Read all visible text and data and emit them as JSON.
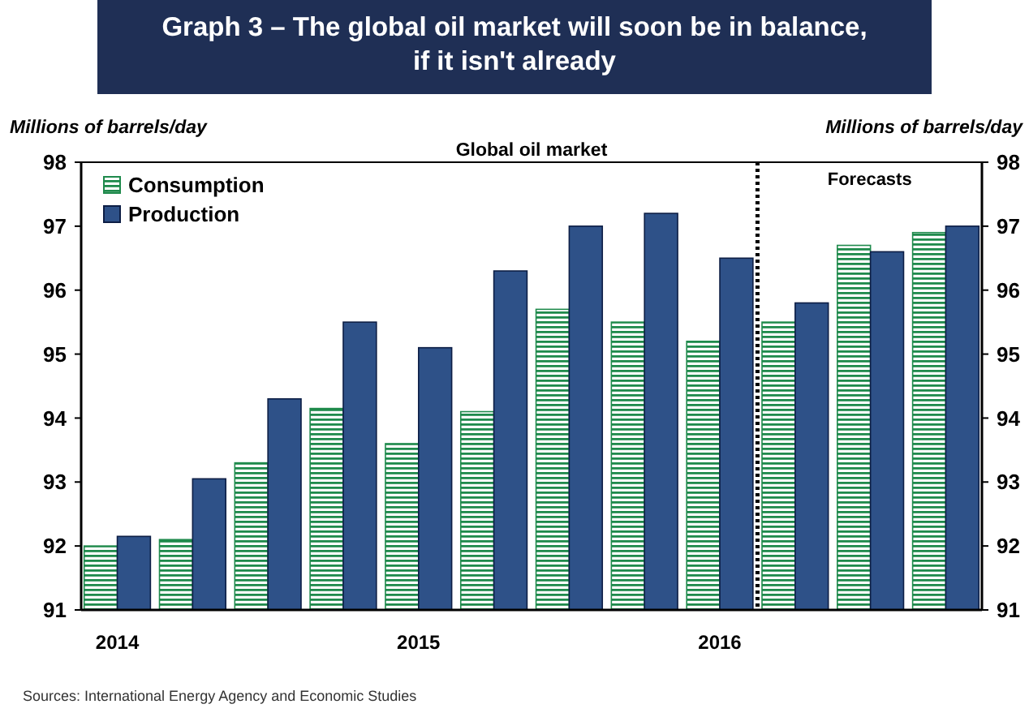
{
  "chart_data": {
    "type": "bar",
    "title": "Graph 3 – The global oil market will soon be in balance, if it isn't already",
    "subtitle": "Global oil market",
    "ylabel": "Millions of barrels/day",
    "y2label": "Millions of barrels/day",
    "categories": [
      "2014",
      null,
      null,
      null,
      "2015",
      null,
      null,
      null,
      "2016",
      null,
      null,
      null
    ],
    "series": [
      {
        "name": "Consumption",
        "color": "#1f8a4c",
        "values": [
          92.0,
          92.1,
          93.3,
          94.15,
          93.6,
          94.1,
          95.7,
          95.5,
          95.2,
          95.5,
          96.7,
          96.9
        ]
      },
      {
        "name": "Production",
        "color": "#2e5188",
        "values": [
          92.15,
          93.05,
          94.3,
          95.5,
          95.1,
          96.3,
          97.0,
          97.2,
          96.5,
          95.8,
          96.6,
          97.0
        ]
      }
    ],
    "ylim": [
      91,
      98
    ],
    "yticks": [
      91,
      92,
      93,
      94,
      95,
      96,
      97,
      98
    ],
    "y2lim": [
      91,
      98
    ],
    "y2ticks": [
      91,
      92,
      93,
      94,
      95,
      96,
      97,
      98
    ],
    "legend": "top left",
    "grid": false,
    "annotations": [
      "Forecasts",
      "Sources: International Energy Agency and Economic Studies"
    ]
  }
}
